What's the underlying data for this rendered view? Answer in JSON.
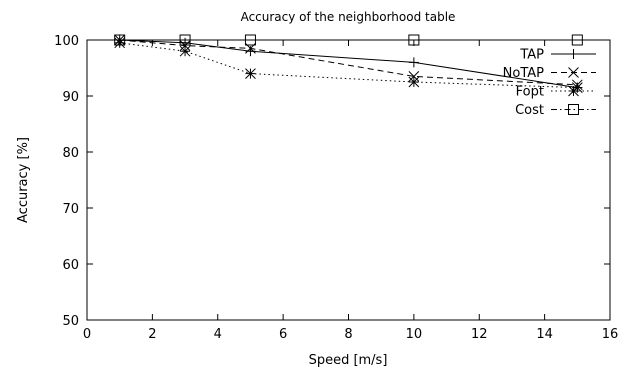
{
  "chart_data": {
    "type": "line",
    "title": "Accuracy of the neighborhood table",
    "xlabel": "Speed [m/s]",
    "ylabel": "Accuracy [%]",
    "xlim": [
      0,
      16
    ],
    "ylim": [
      50,
      100
    ],
    "xticks": [
      0,
      2,
      4,
      6,
      8,
      10,
      12,
      14,
      16
    ],
    "yticks": [
      50,
      60,
      70,
      80,
      90,
      100
    ],
    "grid": false,
    "legend": "top-right",
    "series": [
      {
        "name": "TAP",
        "marker": "plus",
        "dash": "",
        "x": [
          1,
          3,
          5,
          10,
          15
        ],
        "y": [
          100,
          99.5,
          98,
          96,
          91.5
        ]
      },
      {
        "name": "NoTAP",
        "marker": "cross",
        "dash": "6,4",
        "x": [
          1,
          3,
          5,
          10,
          15
        ],
        "y": [
          100,
          99,
          98.5,
          93.5,
          92
        ]
      },
      {
        "name": "Fopt",
        "marker": "star",
        "dash": "1.5,3",
        "x": [
          1,
          3,
          5,
          10,
          15
        ],
        "y": [
          99.5,
          98,
          94,
          92.5,
          91.5
        ]
      },
      {
        "name": "Cost",
        "marker": "square",
        "dash": "6,3,1.5,3",
        "x": [
          1,
          3,
          5,
          10,
          15
        ],
        "y": [
          100,
          100,
          100,
          100,
          100
        ]
      }
    ]
  }
}
